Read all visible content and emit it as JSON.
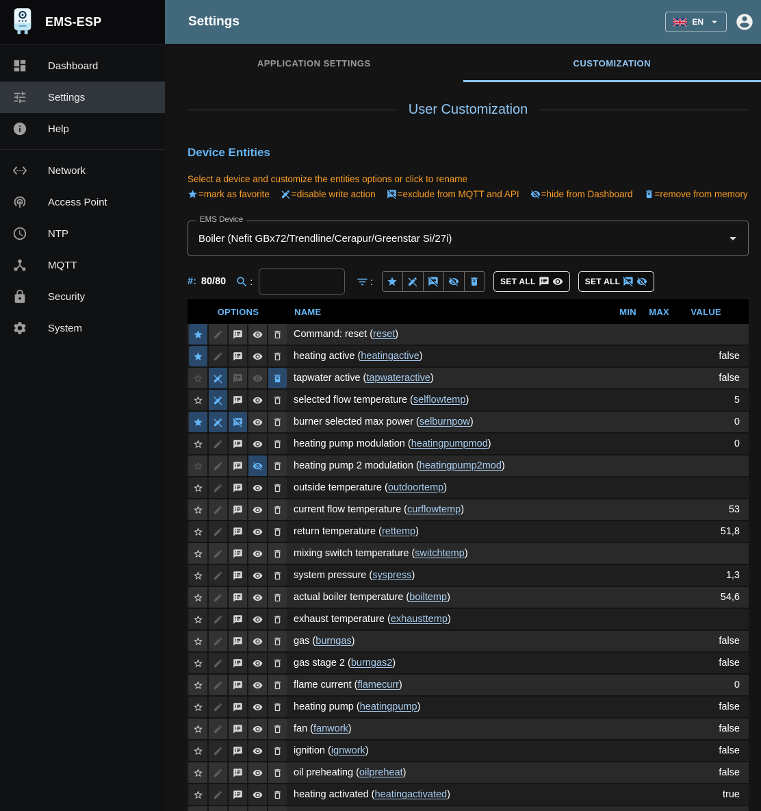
{
  "app": {
    "title": "EMS-ESP"
  },
  "topbar": {
    "title": "Settings",
    "language": "EN"
  },
  "sidebar": {
    "items": [
      {
        "label": "Dashboard",
        "icon": "dashboard"
      },
      {
        "label": "Settings",
        "icon": "tune",
        "selected": true
      },
      {
        "label": "Help",
        "icon": "info"
      },
      {
        "divider": true
      },
      {
        "label": "Network",
        "icon": "ethernet"
      },
      {
        "label": "Access Point",
        "icon": "wifi-tethering"
      },
      {
        "label": "NTP",
        "icon": "clock"
      },
      {
        "label": "MQTT",
        "icon": "hub"
      },
      {
        "label": "Security",
        "icon": "lock"
      },
      {
        "label": "System",
        "icon": "gear"
      }
    ]
  },
  "tabs": [
    {
      "label": "APPLICATION SETTINGS",
      "active": false
    },
    {
      "label": "CUSTOMIZATION",
      "active": true
    }
  ],
  "page": {
    "section_title": "User Customization",
    "subsection_title": "Device Entities",
    "instruction": "Select a device and customize the entities options or click to rename",
    "legend": [
      {
        "icon": "star",
        "text": "=mark as favorite"
      },
      {
        "icon": "pencil-off",
        "text": "=disable write action"
      },
      {
        "icon": "notes-off",
        "text": "=exclude from MQTT and API"
      },
      {
        "icon": "eye-off",
        "text": "=hide from Dashboard"
      },
      {
        "icon": "trash-x",
        "text": "=remove from memory"
      }
    ],
    "device_select": {
      "label": "EMS Device",
      "value": "Boiler (Nefit GBx72/Trendline/Cerapur/Greenstar Si/27i)"
    },
    "toolbar": {
      "count_label": "#:",
      "count": "80/80",
      "colon": ":",
      "search_value": "",
      "filters": [
        {
          "name": "favorite",
          "icon": "star"
        },
        {
          "name": "disable-write",
          "icon": "pencil-off"
        },
        {
          "name": "exclude-mqtt",
          "icon": "notes-off"
        },
        {
          "name": "hide-dashboard",
          "icon": "eye-off"
        },
        {
          "name": "remove-memory",
          "icon": "trash-x"
        }
      ],
      "set_all_buttons": [
        {
          "label": "SET ALL",
          "icons": [
            "notes",
            "eye"
          ],
          "accent": false
        },
        {
          "label": "SET ALL",
          "icons": [
            "notes-off",
            "eye-off"
          ],
          "accent": true
        }
      ]
    },
    "table": {
      "columns": [
        "OPTIONS",
        "NAME",
        "MIN",
        "MAX",
        "VALUE"
      ],
      "rows": [
        {
          "name": "Command: reset",
          "key": "reset",
          "value": "",
          "fav": "on"
        },
        {
          "name": "heating active",
          "key": "heatingactive",
          "value": "false",
          "fav": "on"
        },
        {
          "name": "tapwater active",
          "key": "tapwateractive",
          "value": "false",
          "fav": "dim",
          "write": "disabled",
          "mqtt": "dim",
          "dash": "dim",
          "mem": "removed"
        },
        {
          "name": "selected flow temperature",
          "key": "selflowtemp",
          "value": "5",
          "write": "disabled"
        },
        {
          "name": "burner selected max power",
          "key": "selburnpow",
          "value": "0",
          "fav": "on",
          "write": "disabled",
          "mqtt": "excluded"
        },
        {
          "name": "heating pump modulation",
          "key": "heatingpumpmod",
          "value": "0"
        },
        {
          "name": "heating pump 2 modulation",
          "key": "heatingpump2mod",
          "value": "",
          "fav": "dim",
          "dash": "hidden"
        },
        {
          "name": "outside temperature",
          "key": "outdoortemp",
          "value": ""
        },
        {
          "name": "current flow temperature",
          "key": "curflowtemp",
          "value": "53"
        },
        {
          "name": "return temperature",
          "key": "rettemp",
          "value": "51,8"
        },
        {
          "name": "mixing switch temperature",
          "key": "switchtemp",
          "value": ""
        },
        {
          "name": "system pressure",
          "key": "syspress",
          "value": "1,3"
        },
        {
          "name": "actual boiler temperature",
          "key": "boiltemp",
          "value": "54,6"
        },
        {
          "name": "exhaust temperature",
          "key": "exhausttemp",
          "value": ""
        },
        {
          "name": "gas",
          "key": "burngas",
          "value": "false"
        },
        {
          "name": "gas stage 2",
          "key": "burngas2",
          "value": "false"
        },
        {
          "name": "flame current",
          "key": "flamecurr",
          "value": "0"
        },
        {
          "name": "heating pump",
          "key": "heatingpump",
          "value": "false"
        },
        {
          "name": "fan",
          "key": "fanwork",
          "value": "false"
        },
        {
          "name": "ignition",
          "key": "ignwork",
          "value": "false"
        },
        {
          "name": "oil preheating",
          "key": "oilpreheat",
          "value": "false"
        },
        {
          "name": "heating activated",
          "key": "heatingactivated",
          "value": "true"
        },
        {
          "name": "",
          "key": "",
          "value": ""
        }
      ]
    }
  },
  "colors": {
    "accent": "#64b5f6",
    "topbar": "#42687c",
    "warning_text": "#ffa028",
    "link": "#a8cdf0",
    "active_cell_bg": "#29486a"
  }
}
